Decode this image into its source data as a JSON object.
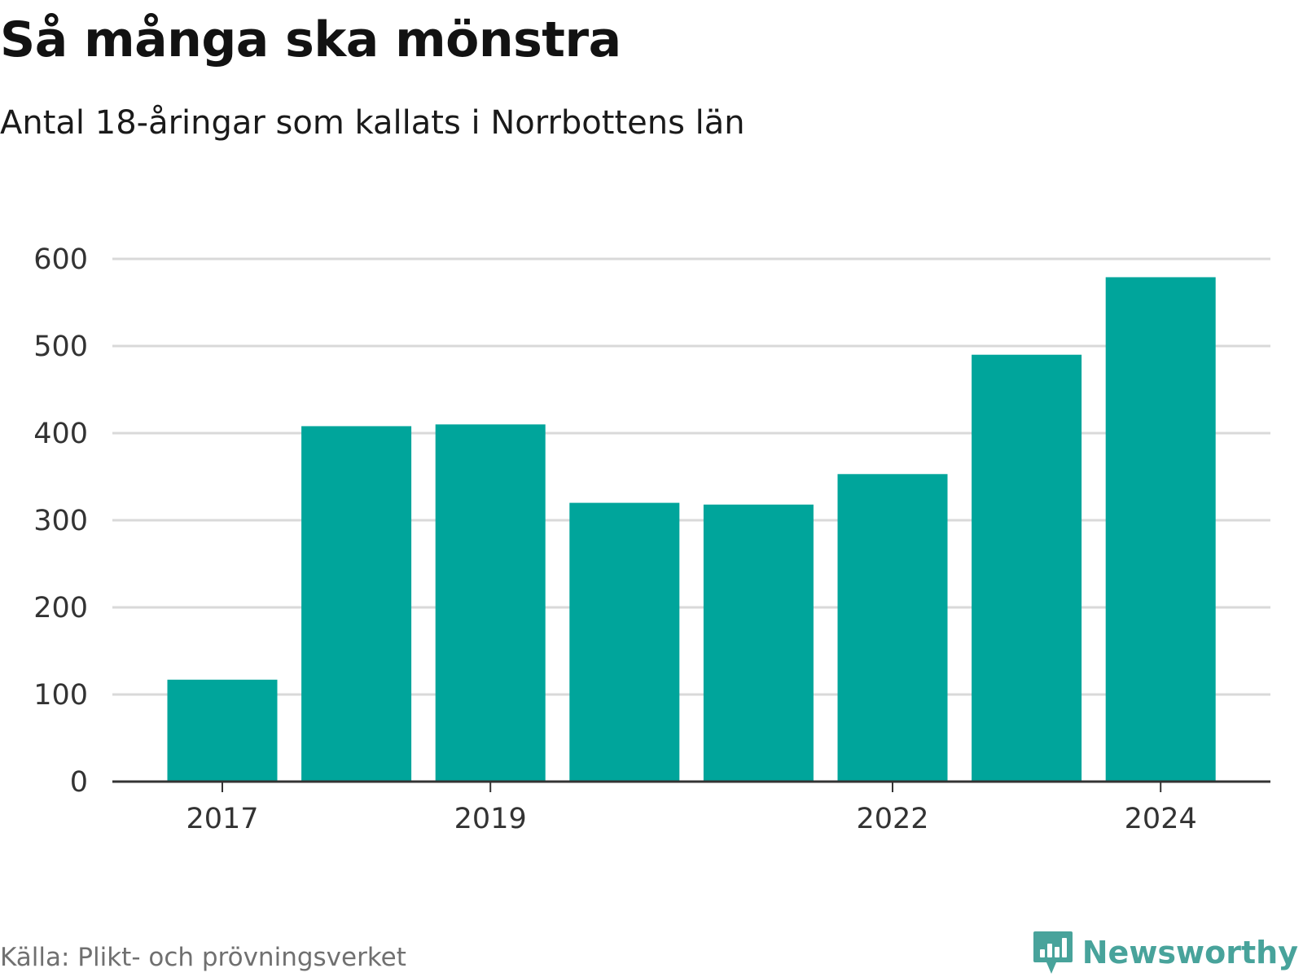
{
  "title": "Så många ska mönstra",
  "subtitle": "Antal 18-åringar som kallats i Norrbottens län",
  "source": "Källa: Plikt- och prövningsverket",
  "brand": {
    "name": "Newsworthy",
    "icon": "bar-chart-speech-bubble-icon",
    "color": "#48a39b"
  },
  "colors": {
    "bar": "#00a59b",
    "grid": "#d9d9d9",
    "axis": "#333333",
    "tick_text": "#333333"
  },
  "chart_data": {
    "type": "bar",
    "categories": [
      "2017",
      "2018",
      "2019",
      "2020",
      "2021",
      "2022",
      "2023",
      "2024"
    ],
    "values": [
      117,
      408,
      410,
      320,
      318,
      353,
      490,
      579
    ],
    "xtick_labels": [
      "2017",
      "2019",
      "2022",
      "2024"
    ],
    "yticks": [
      0,
      100,
      200,
      300,
      400,
      500,
      600
    ],
    "ylim": [
      0,
      600
    ],
    "grid": true,
    "legend": "none"
  }
}
